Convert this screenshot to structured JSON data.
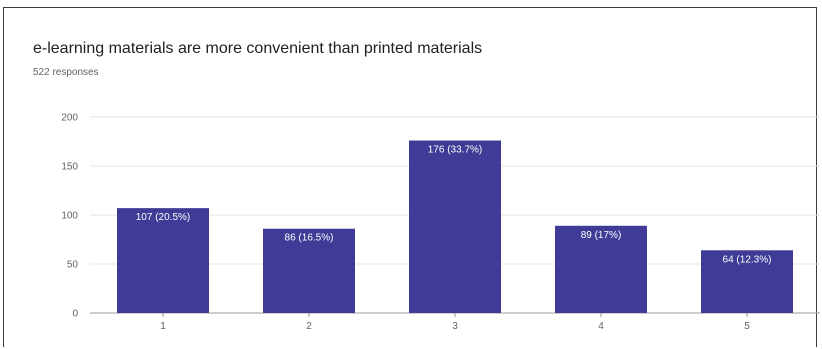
{
  "chart_data": {
    "type": "bar",
    "title": "e-learning materials are more convenient than printed materials",
    "subtitle": "522 responses",
    "categories": [
      "1",
      "2",
      "3",
      "4",
      "5"
    ],
    "values": [
      107,
      86,
      176,
      89,
      64
    ],
    "data_labels": [
      "107 (20.5%)",
      "86 (16.5%)",
      "176 (33.7%)",
      "89 (17%)",
      "64 (12.3%)"
    ],
    "y_ticks": [
      0,
      50,
      100,
      150,
      200
    ],
    "ylim": [
      0,
      200
    ],
    "grid": true,
    "bar_color": "#3f3b96"
  }
}
